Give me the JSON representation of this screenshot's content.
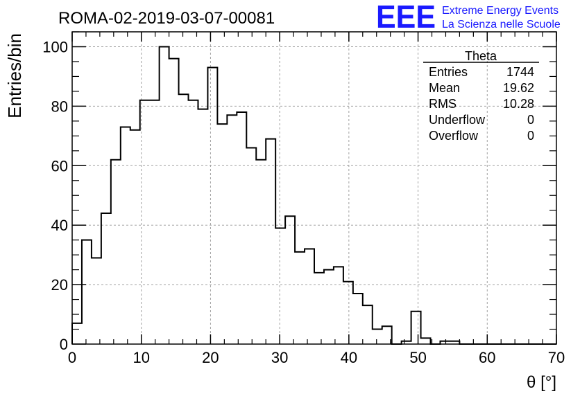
{
  "run_label": "ROMA-02-2019-03-07-00081",
  "logo": {
    "mark": "EEE",
    "line1": "Extreme Energy Events",
    "line2": "La Scienza nelle Scuole",
    "color": "#1a1aff"
  },
  "stats_box": {
    "title": "Theta",
    "rows": [
      {
        "label": "Entries",
        "value": "1744"
      },
      {
        "label": "Mean",
        "value": "19.62"
      },
      {
        "label": "RMS",
        "value": "10.28"
      },
      {
        "label": "Underflow",
        "value": "0"
      },
      {
        "label": "Overflow",
        "value": "0"
      }
    ]
  },
  "chart_data": {
    "type": "bar",
    "style": "step-histogram",
    "title": "ROMA-02-2019-03-07-00081",
    "xlabel": "θ [°]",
    "ylabel": "Entries/bin",
    "xlim": [
      0,
      70
    ],
    "ylim": [
      0,
      105
    ],
    "bin_width": 1.4,
    "grid": true,
    "x_ticks": [
      "0",
      "10",
      "20",
      "30",
      "40",
      "50",
      "60",
      "70"
    ],
    "y_ticks": [
      "0",
      "20",
      "40",
      "60",
      "80",
      "100"
    ],
    "bin_start": 0,
    "values": [
      7,
      35,
      29,
      44,
      62,
      73,
      72,
      82,
      82,
      100,
      96,
      84,
      82,
      79,
      93,
      74,
      77,
      78,
      66,
      62,
      69,
      39,
      43,
      31,
      32,
      24,
      25,
      26,
      21,
      17,
      13,
      5,
      6,
      0,
      1,
      11,
      2,
      0,
      1,
      1,
      0,
      0,
      0,
      0,
      0,
      0,
      0,
      0,
      0,
      0
    ]
  }
}
